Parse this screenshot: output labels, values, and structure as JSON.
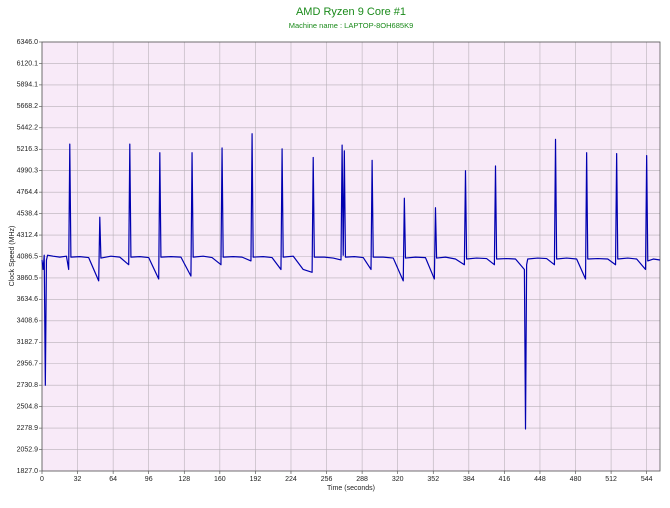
{
  "chart_data": {
    "type": "line",
    "title": "AMD Ryzen 9 Core #1",
    "subtitle": "Machine name : LAPTOP-8OH685K9",
    "x_label": "Time (seconds)",
    "y_label": "Clock Speed (MHz)",
    "background": "#f8eaf8",
    "grid": true,
    "x": [
      0,
      1,
      2,
      3,
      4,
      5,
      10,
      16,
      22,
      24,
      25,
      26,
      34,
      42,
      51,
      52,
      53,
      62,
      70,
      78,
      79,
      80,
      88,
      96,
      105,
      106,
      107,
      116,
      125,
      134,
      135,
      136,
      145,
      153,
      161,
      162,
      163,
      172,
      180,
      188,
      189,
      190,
      199,
      207,
      215,
      216,
      217,
      226,
      235,
      243,
      244,
      245,
      254,
      262,
      269,
      270,
      271,
      272,
      273,
      281,
      289,
      296,
      297,
      298,
      307,
      316,
      325,
      326,
      327,
      336,
      345,
      353,
      354,
      355,
      363,
      372,
      380,
      381,
      382,
      391,
      400,
      407,
      408,
      409,
      418,
      426,
      434,
      435,
      436,
      437,
      446,
      454,
      461,
      462,
      463,
      472,
      481,
      489,
      490,
      491,
      500,
      509,
      516,
      517,
      518,
      527,
      535,
      543,
      544,
      545,
      550,
      556
    ],
    "series": [
      {
        "name": "Clock Speed",
        "color": "#0000b0",
        "values": [
          4050,
          3950,
          4100,
          2730,
          4050,
          4100,
          4090,
          4080,
          4090,
          3950,
          5270,
          4080,
          4085,
          4075,
          3830,
          4500,
          4070,
          4090,
          4080,
          4000,
          5270,
          4080,
          4085,
          4075,
          3850,
          5180,
          4080,
          4085,
          4080,
          3880,
          5180,
          4080,
          4090,
          4075,
          4000,
          5230,
          4080,
          4085,
          4080,
          4040,
          5380,
          4080,
          4085,
          4075,
          3950,
          5220,
          4080,
          4090,
          3950,
          3920,
          5130,
          4080,
          4080,
          4070,
          4050,
          5260,
          4100,
          5200,
          4080,
          4085,
          4075,
          3950,
          5100,
          4080,
          4080,
          4070,
          3830,
          4700,
          4070,
          4080,
          4075,
          3850,
          4600,
          4070,
          4080,
          4060,
          4000,
          4990,
          4060,
          4070,
          4065,
          4000,
          5040,
          4060,
          4065,
          4060,
          3950,
          2270,
          4000,
          4060,
          4070,
          4065,
          4000,
          5320,
          4060,
          4070,
          4060,
          3850,
          5180,
          4060,
          4065,
          4060,
          4000,
          5170,
          4060,
          4070,
          4060,
          3950,
          5150,
          4040,
          4060,
          4050
        ]
      }
    ],
    "xlim": [
      0,
      556
    ],
    "xticks": [
      0,
      32,
      64,
      96,
      128,
      160,
      192,
      224,
      256,
      288,
      320,
      352,
      384,
      416,
      448,
      480,
      512,
      544
    ],
    "ylim": [
      1827,
      6346
    ],
    "yticks": [
      {
        "value": 1827,
        "label": "1827.0"
      },
      2052.9,
      2278.9,
      2504.8,
      2730.8,
      2956.7,
      3182.7,
      3408.6,
      3634.6,
      3860.5,
      4086.5,
      4312.4,
      4538.4,
      4764.4,
      4990.3,
      5216.3,
      5442.2,
      5668.2,
      5894.1,
      6120.1,
      {
        "value": 6346,
        "label": "6346.0"
      }
    ]
  }
}
